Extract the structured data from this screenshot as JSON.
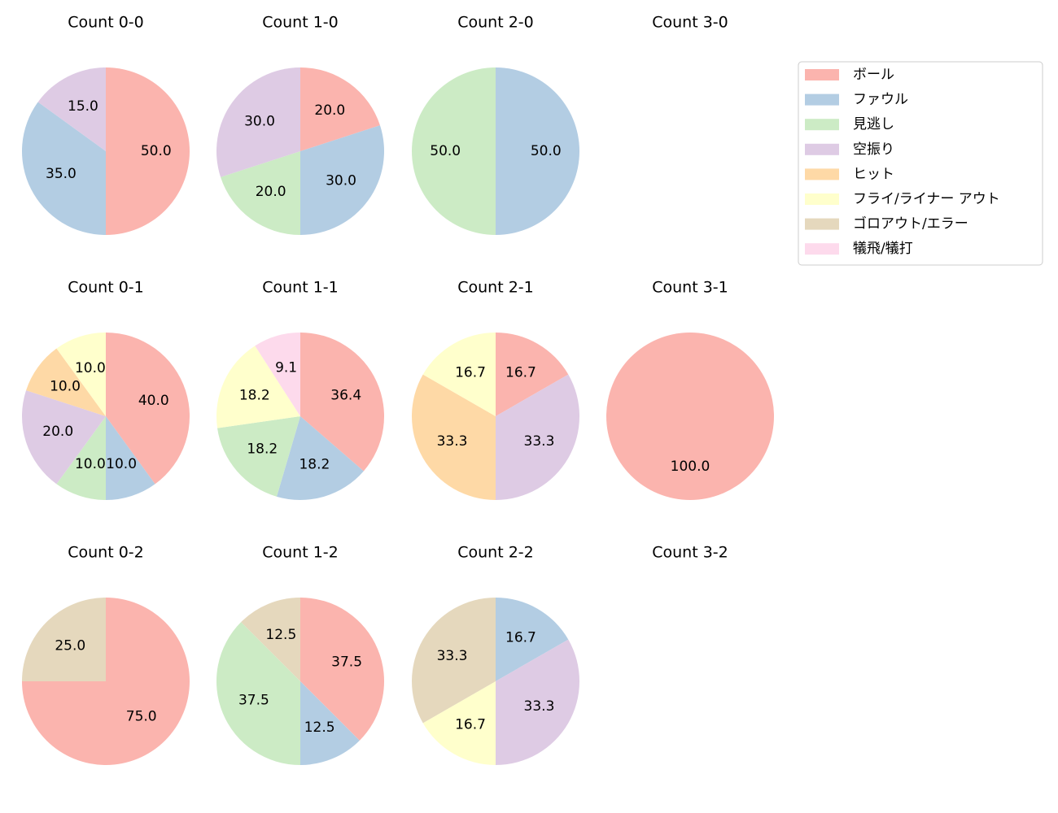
{
  "legend": {
    "location": "upper right",
    "labels": [
      "ボール",
      "ファウル",
      "見逃し",
      "空振り",
      "ヒット",
      "フライ/ライナー アウト",
      "ゴロアウト/エラー",
      "犠飛/犠打"
    ],
    "colors": [
      "#fbb4ae",
      "#b3cde3",
      "#ccebc5",
      "#decbe4",
      "#fed9a6",
      "#ffffcc",
      "#e5d8bd",
      "#fddaec"
    ]
  },
  "chart_data": [
    {
      "type": "pie",
      "title": "Count 0-0",
      "categories": [
        "ボール",
        "ファウル",
        "空振り"
      ],
      "values": [
        50,
        35,
        15
      ],
      "value_labels": [
        "50.0",
        "35.0",
        "15.0"
      ],
      "colors": [
        "#fbb4ae",
        "#b3cde3",
        "#decbe4"
      ]
    },
    {
      "type": "pie",
      "title": "Count 1-0",
      "categories": [
        "ボール",
        "ファウル",
        "見逃し",
        "空振り"
      ],
      "values": [
        20,
        30,
        20,
        30
      ],
      "value_labels": [
        "20.0",
        "30.0",
        "20.0",
        "30.0"
      ],
      "colors": [
        "#fbb4ae",
        "#b3cde3",
        "#ccebc5",
        "#decbe4"
      ]
    },
    {
      "type": "pie",
      "title": "Count 2-0",
      "categories": [
        "ファウル",
        "見逃し"
      ],
      "values": [
        50,
        50
      ],
      "value_labels": [
        "50.0",
        "50.0"
      ],
      "colors": [
        "#b3cde3",
        "#ccebc5"
      ]
    },
    {
      "type": "pie",
      "title": "Count 3-0",
      "categories": [],
      "values": [],
      "value_labels": [],
      "colors": []
    },
    {
      "type": "pie",
      "title": "Count 0-1",
      "categories": [
        "ボール",
        "ファウル",
        "見逃し",
        "空振り",
        "ヒット",
        "フライ/ライナー アウト"
      ],
      "values": [
        40,
        10,
        10,
        20,
        10,
        10
      ],
      "value_labels": [
        "40.0",
        "10.0",
        "10.0",
        "20.0",
        "10.0",
        "10.0"
      ],
      "colors": [
        "#fbb4ae",
        "#b3cde3",
        "#ccebc5",
        "#decbe4",
        "#fed9a6",
        "#ffffcc"
      ]
    },
    {
      "type": "pie",
      "title": "Count 1-1",
      "categories": [
        "ボール",
        "ファウル",
        "見逃し",
        "フライ/ライナー アウト",
        "犠飛/犠打"
      ],
      "values": [
        36.4,
        18.2,
        18.2,
        18.2,
        9.1
      ],
      "value_labels": [
        "36.4",
        "18.2",
        "18.2",
        "18.2",
        "9.1"
      ],
      "colors": [
        "#fbb4ae",
        "#b3cde3",
        "#ccebc5",
        "#ffffcc",
        "#fddaec"
      ]
    },
    {
      "type": "pie",
      "title": "Count 2-1",
      "categories": [
        "ボール",
        "空振り",
        "ヒット",
        "フライ/ライナー アウト"
      ],
      "values": [
        16.7,
        33.3,
        33.3,
        16.7
      ],
      "value_labels": [
        "16.7",
        "33.3",
        "33.3",
        "16.7"
      ],
      "colors": [
        "#fbb4ae",
        "#decbe4",
        "#fed9a6",
        "#ffffcc"
      ]
    },
    {
      "type": "pie",
      "title": "Count 3-1",
      "categories": [
        "ボール"
      ],
      "values": [
        100
      ],
      "value_labels": [
        "100.0"
      ],
      "colors": [
        "#fbb4ae"
      ]
    },
    {
      "type": "pie",
      "title": "Count 0-2",
      "categories": [
        "ボール",
        "ゴロアウト/エラー"
      ],
      "values": [
        75,
        25
      ],
      "value_labels": [
        "75.0",
        "25.0"
      ],
      "colors": [
        "#fbb4ae",
        "#e5d8bd"
      ]
    },
    {
      "type": "pie",
      "title": "Count 1-2",
      "categories": [
        "ボール",
        "ファウル",
        "見逃し",
        "ゴロアウト/エラー"
      ],
      "values": [
        37.5,
        12.5,
        37.5,
        12.5
      ],
      "value_labels": [
        "37.5",
        "12.5",
        "37.5",
        "12.5"
      ],
      "colors": [
        "#fbb4ae",
        "#b3cde3",
        "#ccebc5",
        "#e5d8bd"
      ]
    },
    {
      "type": "pie",
      "title": "Count 2-2",
      "categories": [
        "ファウル",
        "空振り",
        "フライ/ライナー アウト",
        "ゴロアウト/エラー"
      ],
      "values": [
        16.7,
        33.3,
        16.7,
        33.3
      ],
      "value_labels": [
        "16.7",
        "33.3",
        "16.7",
        "33.3"
      ],
      "colors": [
        "#b3cde3",
        "#decbe4",
        "#ffffcc",
        "#e5d8bd"
      ]
    },
    {
      "type": "pie",
      "title": "Count 3-2",
      "categories": [],
      "values": [],
      "value_labels": [],
      "colors": []
    }
  ]
}
